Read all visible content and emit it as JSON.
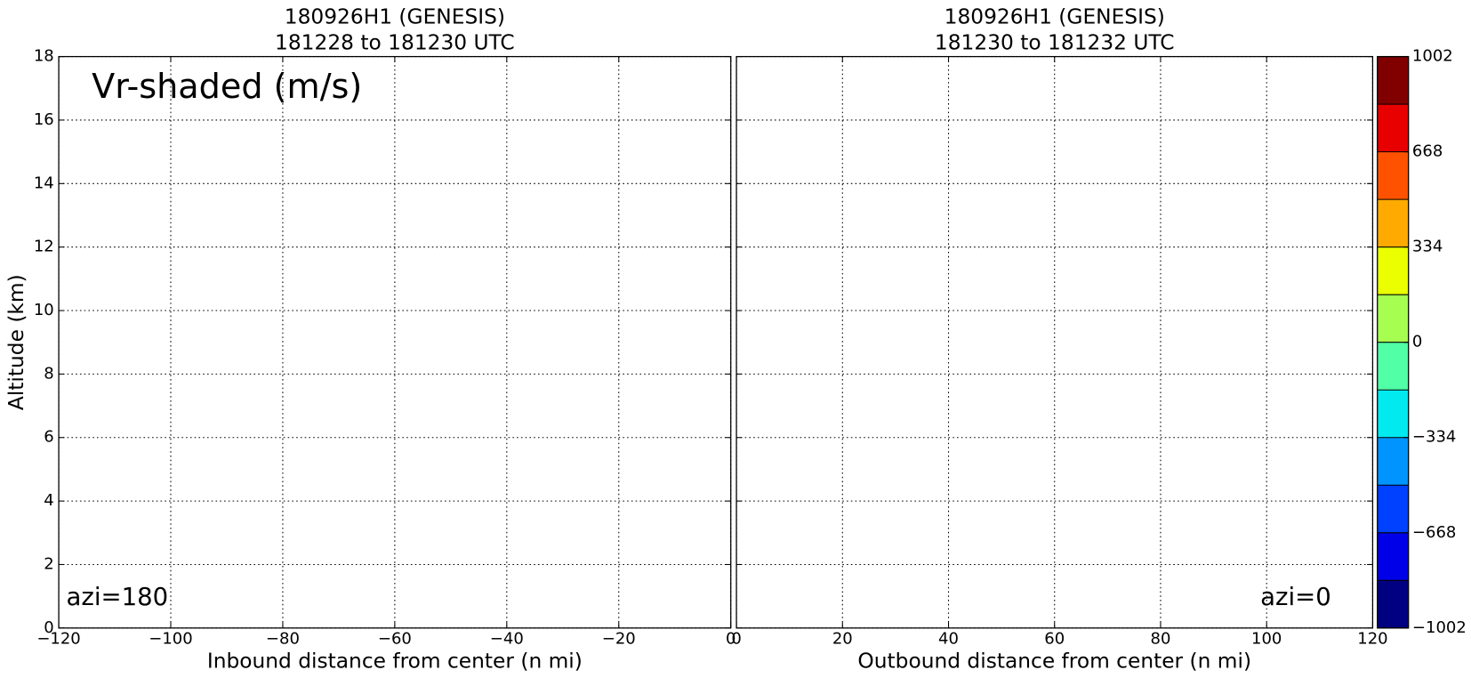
{
  "chart_data": [
    {
      "type": "contourf",
      "title": "180926H1 (GENESIS)",
      "subtitle": "181228 to 181230 UTC",
      "xlabel": "Inbound distance from center (n mi)",
      "ylabel": "Altitude (km)",
      "xlim": [
        -120,
        0
      ],
      "xticks": [
        {
          "value": -120,
          "label": "−120"
        },
        {
          "value": -100,
          "label": "−100"
        },
        {
          "value": -80,
          "label": "−80"
        },
        {
          "value": -60,
          "label": "−60"
        },
        {
          "value": -40,
          "label": "−40"
        },
        {
          "value": -20,
          "label": "−20"
        },
        0
      ],
      "ylim": [
        0,
        18
      ],
      "yticks": [
        0,
        2,
        4,
        6,
        8,
        10,
        12,
        14,
        16,
        18
      ],
      "grid": true,
      "annotations": [
        "Vr-shaded (m/s)",
        "azi=180"
      ]
    },
    {
      "type": "contourf",
      "title": "180926H1 (GENESIS)",
      "subtitle": "181230 to 181232 UTC",
      "xlabel": "Outbound distance from center (n mi)",
      "xlim": [
        0,
        120
      ],
      "xticks": [
        0,
        20,
        40,
        60,
        80,
        100,
        120
      ],
      "ylim": [
        0,
        18
      ],
      "yticks": [
        0,
        2,
        4,
        6,
        8,
        10,
        12,
        14,
        16,
        18
      ],
      "grid": true,
      "annotations": [
        "azi=0"
      ]
    },
    {
      "type": "colorbar",
      "levels": [
        -1002,
        -835,
        -668,
        -501,
        -334,
        -167,
        0,
        167,
        334,
        501,
        668,
        835,
        1002
      ],
      "colors": [
        "#000080",
        "#0000e8",
        "#0040ff",
        "#0094ff",
        "#00eaf0",
        "#50ffa6",
        "#a6ff50",
        "#eaff00",
        "#ffaa00",
        "#ff5200",
        "#e80000",
        "#800000"
      ],
      "ylim": [
        -1002,
        1002
      ],
      "yticks": [
        {
          "value": -1002,
          "label": "−1002"
        },
        {
          "value": -668,
          "label": "−668"
        },
        {
          "value": -334,
          "label": "−334"
        },
        0,
        334,
        668,
        1002
      ]
    }
  ]
}
